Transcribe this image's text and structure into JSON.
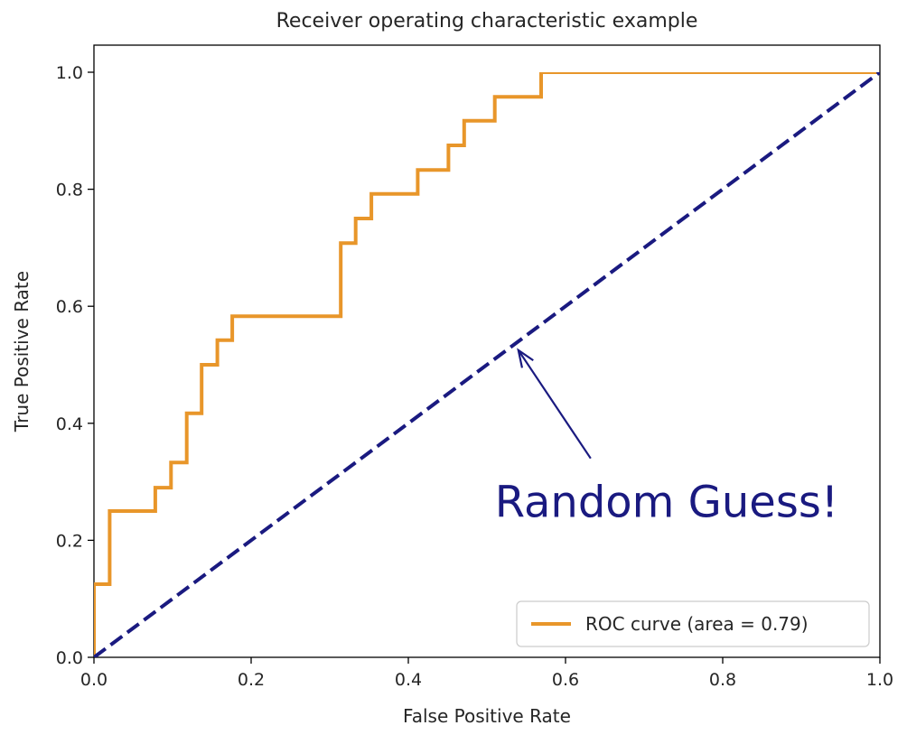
{
  "chart_data": {
    "type": "line",
    "title": "Receiver operating characteristic example",
    "xlabel": "False Positive Rate",
    "ylabel": "True Positive Rate",
    "xlim": [
      0.0,
      1.0
    ],
    "ylim": [
      0.0,
      1.0
    ],
    "x_ticks": [
      "0.0",
      "0.2",
      "0.4",
      "0.6",
      "0.8",
      "1.0"
    ],
    "y_ticks": [
      "0.0",
      "0.2",
      "0.4",
      "0.6",
      "0.8",
      "1.0"
    ],
    "grid": false,
    "legend_position": "lower-right",
    "series": [
      {
        "name": "ROC curve (area = 0.79)",
        "color": "#e8962a",
        "style": "solid",
        "points": [
          [
            0.0,
            0.0
          ],
          [
            0.0,
            0.125
          ],
          [
            0.02,
            0.125
          ],
          [
            0.02,
            0.25
          ],
          [
            0.078,
            0.25
          ],
          [
            0.078,
            0.29
          ],
          [
            0.098,
            0.29
          ],
          [
            0.098,
            0.333
          ],
          [
            0.118,
            0.333
          ],
          [
            0.118,
            0.417
          ],
          [
            0.137,
            0.417
          ],
          [
            0.137,
            0.5
          ],
          [
            0.157,
            0.5
          ],
          [
            0.157,
            0.542
          ],
          [
            0.176,
            0.542
          ],
          [
            0.176,
            0.583
          ],
          [
            0.314,
            0.583
          ],
          [
            0.314,
            0.708
          ],
          [
            0.333,
            0.708
          ],
          [
            0.333,
            0.75
          ],
          [
            0.353,
            0.75
          ],
          [
            0.353,
            0.792
          ],
          [
            0.412,
            0.792
          ],
          [
            0.412,
            0.833
          ],
          [
            0.451,
            0.833
          ],
          [
            0.451,
            0.875
          ],
          [
            0.471,
            0.875
          ],
          [
            0.471,
            0.917
          ],
          [
            0.51,
            0.917
          ],
          [
            0.51,
            0.958
          ],
          [
            0.569,
            0.958
          ],
          [
            0.569,
            1.0
          ],
          [
            1.0,
            1.0
          ]
        ]
      },
      {
        "color": "#1a1a80",
        "style": "dashed",
        "points": [
          [
            0.0,
            0.0
          ],
          [
            1.0,
            1.0
          ]
        ]
      }
    ],
    "annotations": [
      {
        "text": "Random Guess!",
        "color": "#1a1a80",
        "text_at": [
          0.51,
          0.24
        ],
        "arrow_from": [
          0.632,
          0.34
        ],
        "arrow_to": [
          0.54,
          0.525
        ]
      }
    ]
  }
}
